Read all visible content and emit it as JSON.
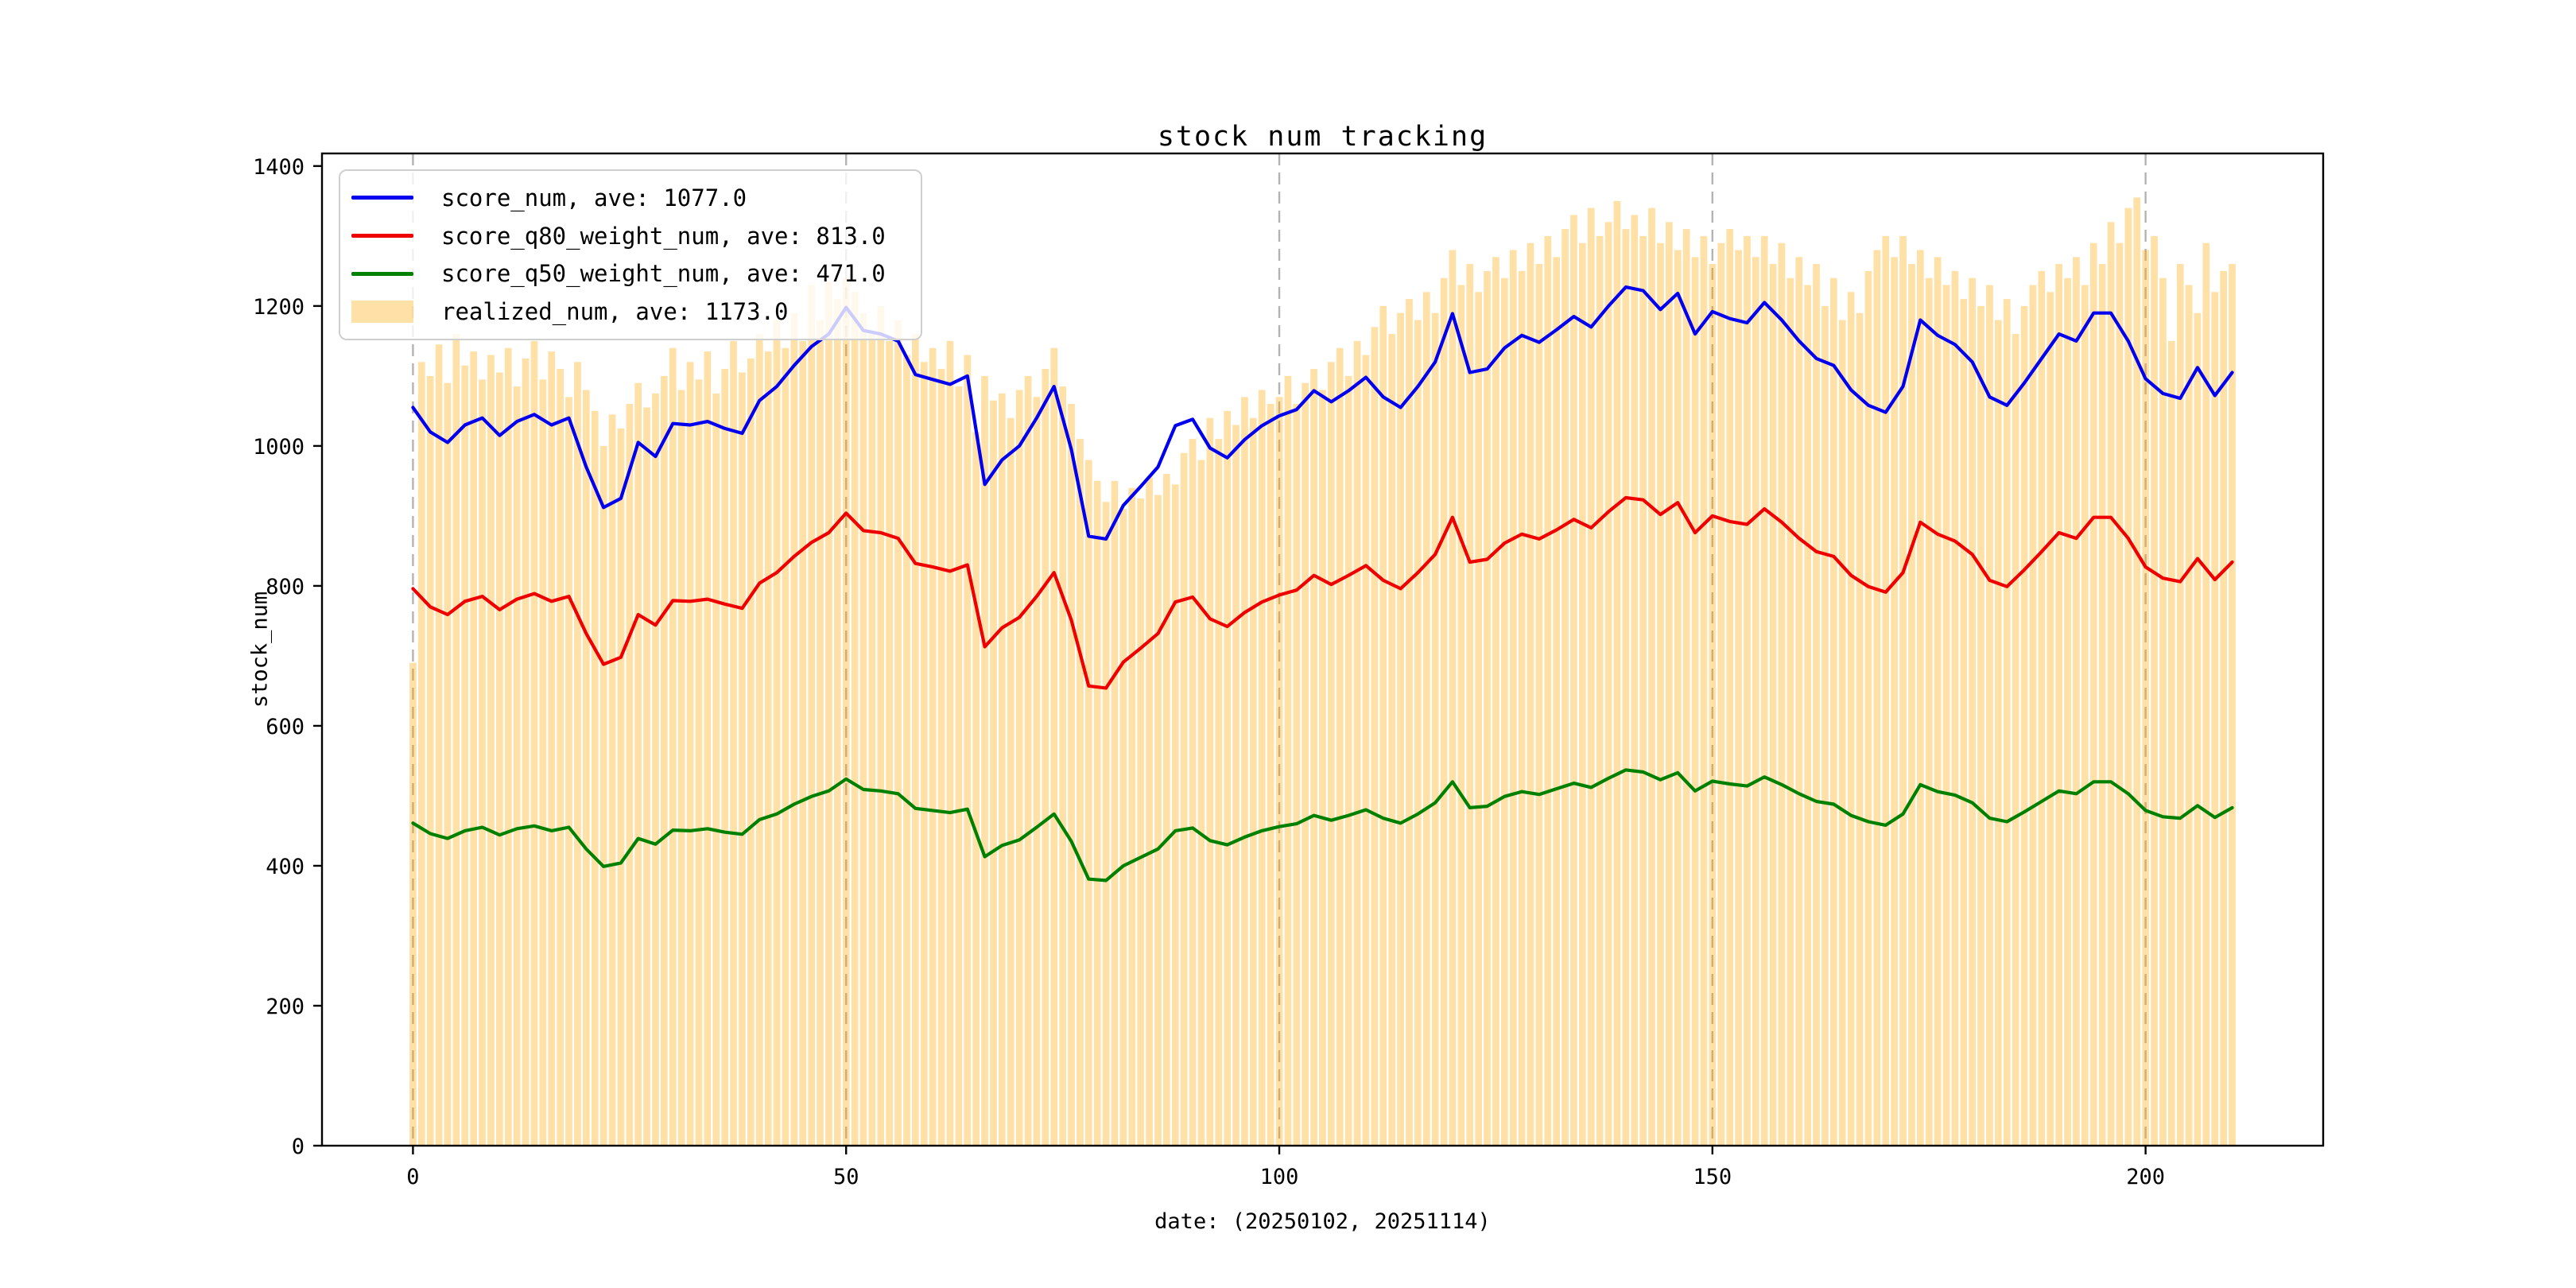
{
  "figure": {
    "background": "#ffffff",
    "spine_color": "#000000",
    "grid_color": "#b3b3b3",
    "text_color": "#000000"
  },
  "chart_data": {
    "type": "line+bar",
    "title": "stock num tracking",
    "xlabel": "date: (20250102, 20251114)",
    "ylabel": "stock_num",
    "xlim": [
      -10.5,
      220.5
    ],
    "ylim": [
      0,
      1418
    ],
    "x_ticks": [
      0,
      50,
      100,
      150,
      200
    ],
    "y_ticks": [
      0,
      200,
      400,
      600,
      800,
      1000,
      1200,
      1400
    ],
    "grid": "vertical-dashed-at-x-ticks",
    "legend_position": "upper-left",
    "bar_series": {
      "name": "realized_num",
      "legend_label": "realized_num, ave: 1173.0",
      "ave": 1173.0,
      "color": "rgba(255,165,0,0.35)",
      "bar_width": 0.8,
      "x_start": 0,
      "x_step": 1,
      "values": [
        690,
        1120,
        1100,
        1145,
        1090,
        1160,
        1115,
        1135,
        1095,
        1130,
        1105,
        1140,
        1085,
        1125,
        1150,
        1095,
        1135,
        1110,
        1070,
        1120,
        1080,
        1050,
        1000,
        1045,
        1025,
        1060,
        1090,
        1055,
        1075,
        1100,
        1140,
        1080,
        1120,
        1095,
        1135,
        1075,
        1110,
        1150,
        1105,
        1125,
        1160,
        1135,
        1180,
        1140,
        1190,
        1150,
        1230,
        1180,
        1235,
        1210,
        1240,
        1220,
        1190,
        1160,
        1200,
        1150,
        1180,
        1130,
        1160,
        1120,
        1140,
        1110,
        1150,
        1085,
        1130,
        1020,
        1100,
        1065,
        1075,
        1040,
        1080,
        1100,
        1070,
        1110,
        1140,
        1085,
        1060,
        1010,
        980,
        950,
        920,
        950,
        910,
        940,
        925,
        955,
        930,
        960,
        945,
        990,
        1010,
        980,
        1040,
        1010,
        1050,
        1030,
        1070,
        1040,
        1080,
        1060,
        1070,
        1100,
        1060,
        1090,
        1110,
        1080,
        1120,
        1140,
        1100,
        1150,
        1130,
        1170,
        1200,
        1160,
        1190,
        1210,
        1180,
        1220,
        1190,
        1240,
        1280,
        1230,
        1260,
        1220,
        1250,
        1270,
        1240,
        1280,
        1250,
        1290,
        1260,
        1300,
        1270,
        1310,
        1330,
        1290,
        1340,
        1300,
        1320,
        1350,
        1310,
        1330,
        1300,
        1340,
        1290,
        1320,
        1280,
        1310,
        1270,
        1300,
        1260,
        1290,
        1310,
        1280,
        1300,
        1270,
        1300,
        1260,
        1290,
        1240,
        1270,
        1230,
        1260,
        1200,
        1240,
        1180,
        1220,
        1190,
        1250,
        1280,
        1300,
        1270,
        1300,
        1260,
        1280,
        1240,
        1270,
        1230,
        1250,
        1210,
        1240,
        1200,
        1230,
        1180,
        1210,
        1160,
        1200,
        1230,
        1250,
        1220,
        1260,
        1240,
        1270,
        1230,
        1290,
        1260,
        1320,
        1290,
        1340,
        1355,
        1280,
        1300,
        1240,
        1150,
        1260,
        1230,
        1190,
        1290,
        1220,
        1250,
        1260
      ]
    },
    "line_series": [
      {
        "name": "score_num",
        "legend_label": "score_num, ave: 1077.0",
        "ave": 1077.0,
        "color": "#0000ee",
        "x_start": 0,
        "x_step": 2,
        "values": [
          1055,
          1020,
          1005,
          1030,
          1040,
          1015,
          1035,
          1045,
          1030,
          1040,
          970,
          912,
          925,
          1005,
          985,
          1032,
          1030,
          1035,
          1025,
          1018,
          1065,
          1085,
          1115,
          1142,
          1160,
          1198,
          1165,
          1160,
          1150,
          1102,
          1095,
          1088,
          1100,
          945,
          980,
          1000,
          1040,
          1085,
          995,
          871,
          867,
          915,
          942,
          970,
          1029,
          1038,
          997,
          983,
          1009,
          1029,
          1043,
          1052,
          1079,
          1063,
          1079,
          1098,
          1070,
          1055,
          1085,
          1120,
          1189,
          1105,
          1110,
          1140,
          1158,
          1148,
          1166,
          1185,
          1170,
          1200,
          1227,
          1222,
          1195,
          1218,
          1160,
          1192,
          1182,
          1176,
          1205,
          1180,
          1150,
          1125,
          1115,
          1080,
          1058,
          1048,
          1085,
          1180,
          1158,
          1145,
          1120,
          1070,
          1058,
          1090,
          1125,
          1160,
          1150,
          1190,
          1190,
          1150,
          1096,
          1075,
          1068,
          1112,
          1072,
          1105
        ]
      },
      {
        "name": "score_q80_weight_num",
        "legend_label": "score_q80_weight_num, ave: 813.0",
        "ave": 813.0,
        "color": "#ee0000",
        "x_start": 0,
        "x_step": 2,
        "values": [
          796,
          770,
          759,
          778,
          785,
          766,
          781,
          789,
          778,
          785,
          732,
          688,
          698,
          759,
          744,
          779,
          778,
          781,
          774,
          768,
          804,
          819,
          842,
          862,
          876,
          904,
          879,
          876,
          868,
          832,
          827,
          821,
          830,
          713,
          740,
          755,
          785,
          819,
          751,
          657,
          654,
          691,
          711,
          732,
          777,
          784,
          753,
          742,
          762,
          777,
          787,
          794,
          815,
          802,
          815,
          829,
          808,
          796,
          819,
          845,
          898,
          834,
          838,
          861,
          874,
          867,
          880,
          895,
          883,
          906,
          926,
          923,
          902,
          919,
          876,
          900,
          892,
          888,
          910,
          891,
          868,
          849,
          842,
          815,
          799,
          791,
          819,
          891,
          874,
          864,
          845,
          808,
          799,
          823,
          849,
          876,
          868,
          898,
          898,
          868,
          827,
          811,
          806,
          839,
          809,
          834
        ]
      },
      {
        "name": "score_q50_weight_num",
        "legend_label": "score_q50_weight_num, ave: 471.0",
        "ave": 471.0,
        "color": "#008000",
        "x_start": 0,
        "x_step": 2,
        "values": [
          461,
          446,
          439,
          450,
          455,
          444,
          453,
          457,
          450,
          455,
          424,
          399,
          404,
          439,
          431,
          451,
          450,
          453,
          448,
          445,
          466,
          474,
          488,
          499,
          507,
          524,
          509,
          507,
          503,
          482,
          479,
          476,
          481,
          413,
          429,
          437,
          455,
          474,
          435,
          381,
          379,
          400,
          412,
          424,
          450,
          454,
          436,
          430,
          441,
          450,
          456,
          460,
          472,
          465,
          472,
          480,
          468,
          461,
          474,
          490,
          520,
          483,
          485,
          499,
          506,
          502,
          510,
          518,
          512,
          525,
          537,
          534,
          523,
          533,
          507,
          521,
          517,
          514,
          527,
          516,
          503,
          492,
          488,
          472,
          463,
          458,
          474,
          516,
          506,
          501,
          490,
          468,
          463,
          477,
          492,
          507,
          503,
          520,
          520,
          503,
          479,
          470,
          468,
          486,
          469,
          483
        ]
      }
    ]
  }
}
